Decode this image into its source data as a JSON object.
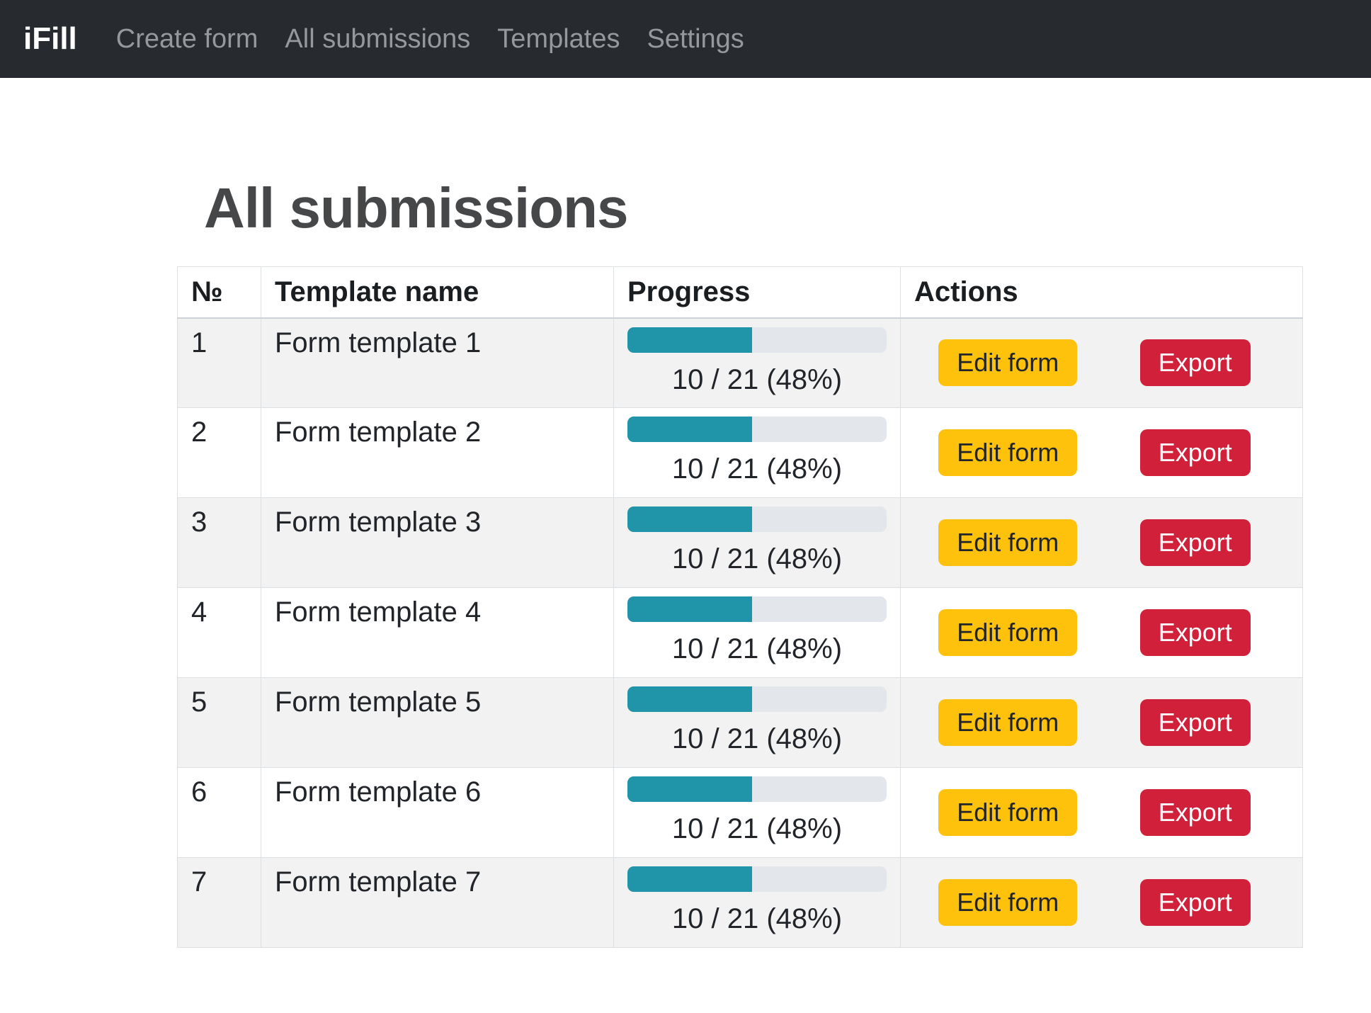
{
  "navbar": {
    "brand": "iFill",
    "items": [
      {
        "label": "Create form"
      },
      {
        "label": "All submissions"
      },
      {
        "label": "Templates"
      },
      {
        "label": "Settings"
      }
    ]
  },
  "page": {
    "title": "All submissions"
  },
  "table": {
    "headers": {
      "num": "№",
      "name": "Template name",
      "progress": "Progress",
      "actions": "Actions"
    },
    "actions": {
      "edit": "Edit form",
      "export": "Export"
    },
    "rows": [
      {
        "num": "1",
        "name": "Form template 1",
        "progress_label": "10 / 21 (48%)",
        "percent": 48
      },
      {
        "num": "2",
        "name": "Form template 2",
        "progress_label": "10 / 21 (48%)",
        "percent": 48
      },
      {
        "num": "3",
        "name": "Form template 3",
        "progress_label": "10 / 21 (48%)",
        "percent": 48
      },
      {
        "num": "4",
        "name": "Form template 4",
        "progress_label": "10 / 21 (48%)",
        "percent": 48
      },
      {
        "num": "5",
        "name": "Form template 5",
        "progress_label": "10 / 21 (48%)",
        "percent": 48
      },
      {
        "num": "6",
        "name": "Form template 6",
        "progress_label": "10 / 21 (48%)",
        "percent": 48
      },
      {
        "num": "7",
        "name": "Form template 7",
        "progress_label": "10 / 21 (48%)",
        "percent": 48
      }
    ]
  },
  "colors": {
    "navbar_bg": "#272b2f",
    "progress_fill": "#2095a9",
    "progress_track": "#e3e6eb",
    "stripe_bg": "#f2f2f2",
    "edit_button": "#fec20d",
    "export_button": "#d1203a"
  }
}
